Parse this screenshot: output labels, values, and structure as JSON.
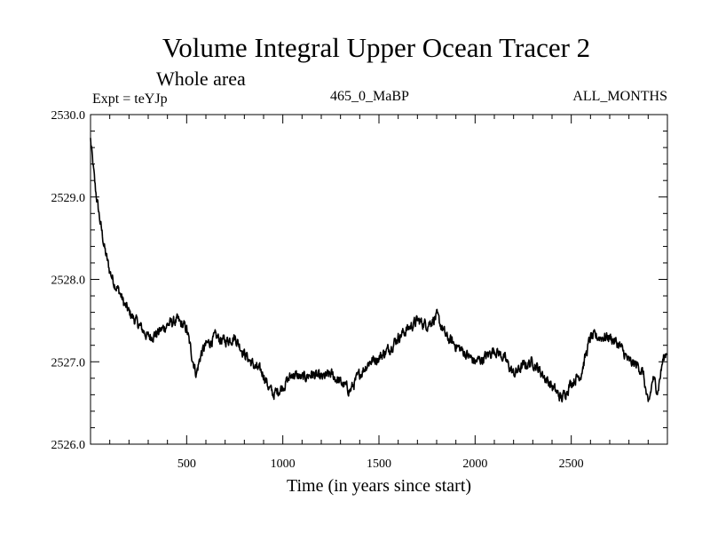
{
  "chart_data": {
    "type": "line",
    "title": "Volume Integral Upper Ocean Tracer 2",
    "subtitle": "Whole area",
    "experiment_label": "Expt = teYJp",
    "period_label": "465_0_MaBP",
    "months_label": "ALL_MONTHS",
    "xlabel": "Time (in years since start)",
    "ylabel": "",
    "xlim": [
      0,
      3000
    ],
    "ylim": [
      2526.0,
      2530.0
    ],
    "xticks": [
      500,
      1000,
      1500,
      2000,
      2500
    ],
    "xtick_labels": [
      "500",
      "1000",
      "1500",
      "2000",
      "2500"
    ],
    "yticks": [
      2526.0,
      2527.0,
      2528.0,
      2529.0,
      2530.0
    ],
    "ytick_labels": [
      "2526.0",
      "2527.0",
      "2528.0",
      "2529.0",
      "2530.0"
    ],
    "series": [
      {
        "name": "Volume Integral Upper Ocean Tracer 2",
        "color": "#000000",
        "x": [
          0,
          10,
          25,
          50,
          75,
          100,
          125,
          150,
          175,
          200,
          250,
          300,
          350,
          400,
          450,
          500,
          525,
          550,
          575,
          600,
          650,
          700,
          750,
          800,
          850,
          900,
          925,
          950,
          1000,
          1050,
          1100,
          1150,
          1200,
          1250,
          1300,
          1350,
          1400,
          1450,
          1500,
          1550,
          1600,
          1650,
          1700,
          1750,
          1800,
          1850,
          1900,
          1950,
          2000,
          2050,
          2100,
          2150,
          2200,
          2250,
          2300,
          2350,
          2400,
          2450,
          2500,
          2550,
          2600,
          2650,
          2700,
          2750,
          2800,
          2850,
          2875,
          2900,
          2925,
          2950,
          2975,
          3000
        ],
        "y": [
          2529.7,
          2529.45,
          2529.1,
          2528.7,
          2528.35,
          2528.1,
          2527.95,
          2527.85,
          2527.7,
          2527.6,
          2527.45,
          2527.3,
          2527.35,
          2527.45,
          2527.5,
          2527.4,
          2527.1,
          2526.85,
          2527.1,
          2527.2,
          2527.3,
          2527.25,
          2527.3,
          2527.1,
          2526.95,
          2526.85,
          2526.7,
          2526.6,
          2526.7,
          2526.85,
          2526.8,
          2526.85,
          2526.8,
          2526.85,
          2526.75,
          2526.65,
          2526.85,
          2527.0,
          2527.05,
          2527.15,
          2527.3,
          2527.4,
          2527.5,
          2527.45,
          2527.55,
          2527.3,
          2527.2,
          2527.1,
          2527.0,
          2527.05,
          2527.15,
          2527.05,
          2526.85,
          2526.95,
          2527.0,
          2526.85,
          2526.7,
          2526.55,
          2526.75,
          2526.85,
          2527.3,
          2527.3,
          2527.3,
          2527.2,
          2527.0,
          2526.95,
          2526.85,
          2526.45,
          2526.8,
          2526.65,
          2527.0,
          2527.15
        ]
      }
    ]
  }
}
